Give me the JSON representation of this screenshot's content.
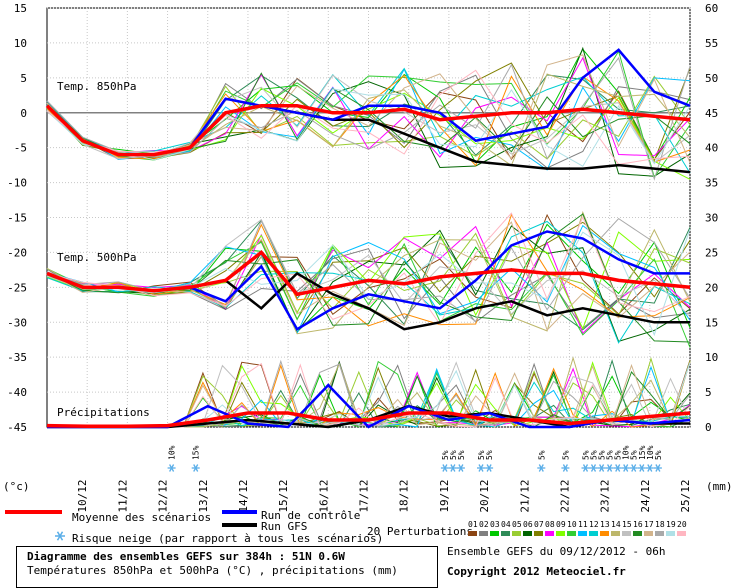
{
  "chart_data": {
    "type": "line",
    "panels": [
      {
        "label": "Temp. 850hPa",
        "axis": "left",
        "ylim": [
          -45,
          15
        ]
      },
      {
        "label": "Temp. 500hPa",
        "axis": "left",
        "ylim": [
          -45,
          15
        ]
      },
      {
        "label": "Précipitations",
        "axis": "right",
        "ylim": [
          0,
          60
        ]
      }
    ],
    "left_ticks": [
      15,
      10,
      5,
      0,
      -5,
      -10,
      -15,
      -20,
      -25,
      -30,
      -35,
      -40,
      -45
    ],
    "right_ticks": [
      60,
      55,
      50,
      45,
      40,
      35,
      30,
      25,
      20,
      15,
      10,
      5,
      0
    ],
    "left_unit": "(°c)",
    "right_unit": "(mm)",
    "x_labels": [
      "10/12",
      "11/12",
      "12/12",
      "13/12",
      "14/12",
      "15/12",
      "16/12",
      "17/12",
      "18/12",
      "19/12",
      "20/12",
      "21/12",
      "22/12",
      "23/12",
      "24/12",
      "25/12"
    ],
    "snow_risk": [
      {
        "day": 3.6,
        "pct": "10%"
      },
      {
        "day": 4.2,
        "pct": "15%"
      },
      {
        "day": 10.4,
        "pct": "5%"
      },
      {
        "day": 10.6,
        "pct": "5%"
      },
      {
        "day": 10.8,
        "pct": "5%"
      },
      {
        "day": 11.3,
        "pct": "5%"
      },
      {
        "day": 11.5,
        "pct": "5%"
      },
      {
        "day": 12.8,
        "pct": "5%"
      },
      {
        "day": 13.4,
        "pct": "5%"
      },
      {
        "day": 13.9,
        "pct": "5%"
      },
      {
        "day": 14.1,
        "pct": "5%"
      },
      {
        "day": 14.3,
        "pct": "5%"
      },
      {
        "day": 14.5,
        "pct": "5%"
      },
      {
        "day": 14.7,
        "pct": "5%"
      },
      {
        "day": 14.9,
        "pct": "10%"
      },
      {
        "day": 15.1,
        "pct": "5%"
      },
      {
        "day": 15.3,
        "pct": "15%"
      },
      {
        "day": 15.5,
        "pct": "10%"
      },
      {
        "day": 15.7,
        "pct": "5%"
      }
    ],
    "series": [
      {
        "name": "Moyenne des scénarios",
        "color": "#ff0000",
        "t850": [
          1,
          -4,
          -6,
          -6,
          -5,
          0,
          1,
          1,
          0,
          0,
          0.5,
          -1,
          -0.5,
          0,
          0,
          0.5,
          0,
          -0.5,
          -1
        ],
        "t500": [
          -23,
          -25,
          -25,
          -25.5,
          -25,
          -24,
          -20,
          -26,
          -25,
          -24,
          -24.5,
          -23.5,
          -23,
          -22.5,
          -23,
          -23,
          -24,
          -24.5,
          -25
        ],
        "precip": [
          0.2,
          0.1,
          0.1,
          0.2,
          1,
          2,
          2,
          1,
          1,
          2,
          2,
          1,
          1,
          0.5,
          1,
          1.5,
          2
        ]
      },
      {
        "name": "Run de contrôle",
        "color": "#0000ff",
        "t850": [
          1,
          -4,
          -6,
          -6,
          -5,
          2,
          1,
          0,
          -1,
          1,
          1,
          0,
          -4,
          -3,
          -2,
          5,
          9,
          3,
          1
        ],
        "t500": [
          -23,
          -25,
          -25,
          -25.5,
          -25,
          -27,
          -22,
          -31,
          -28,
          -26,
          -27,
          -28,
          -24,
          -19,
          -17,
          -18,
          -21,
          -23,
          -23
        ],
        "precip": [
          0,
          0,
          0,
          0,
          3,
          0.5,
          0,
          6,
          0,
          3,
          1,
          2,
          0,
          0,
          1,
          0.5,
          1
        ]
      },
      {
        "name": "Run GFS",
        "color": "#000000",
        "t850": [
          1,
          -4,
          -6,
          -6,
          -5,
          0,
          1,
          0,
          -1,
          -1,
          -3,
          -5,
          -7,
          -7.5,
          -8,
          -8,
          -7.5,
          -8,
          -8.5
        ],
        "t500": [
          -23,
          -25,
          -25,
          -25.5,
          -25,
          -24,
          -28,
          -23,
          -26,
          -28,
          -31,
          -30,
          -28,
          -27,
          -29,
          -28,
          -29,
          -30,
          -30
        ],
        "precip": [
          0,
          0,
          0,
          0,
          0.5,
          1,
          0.5,
          0,
          1,
          3,
          1.5,
          2,
          1,
          0,
          1,
          0.5,
          0.5
        ]
      }
    ],
    "perturbation_count_label": "20 Perturbations",
    "perturbation_ids": [
      "01",
      "02",
      "03",
      "04",
      "05",
      "06",
      "07",
      "08",
      "09",
      "10",
      "11",
      "12",
      "13",
      "14",
      "15",
      "16",
      "17",
      "18",
      "19",
      "20"
    ],
    "perturbation_colors": [
      "#8b4513",
      "#808080",
      "#00c800",
      "#2e8b57",
      "#9acd32",
      "#006400",
      "#808000",
      "#ff00ff",
      "#7fff00",
      "#32cd32",
      "#00bfff",
      "#00ced1",
      "#ff8c00",
      "#bdb76b",
      "#c0c0c0",
      "#228b22",
      "#d2b48c",
      "#a9a9a9",
      "#b0e0e6",
      "#ffb6c1"
    ]
  },
  "legend": {
    "mean": "Moyenne des scénarios",
    "control": "Run de contrôle",
    "gfs": "Run GFS",
    "snow": "Risque neige (par rapport à tous les scénarios)"
  },
  "info": {
    "title": "Diagramme des ensembles GEFS sur 384h : 51N 0.6W",
    "subtitle": "Températures 850hPa et 500hPa (°C) , précipitations (mm)",
    "run": "Ensemble GEFS du 09/12/2012 - 06h",
    "copyright": "Copyright 2012 Meteociel.fr"
  },
  "colors": {
    "mean": "#ff0000",
    "control": "#0000ff",
    "gfs": "#000000",
    "snow": "#9fd3f5"
  }
}
